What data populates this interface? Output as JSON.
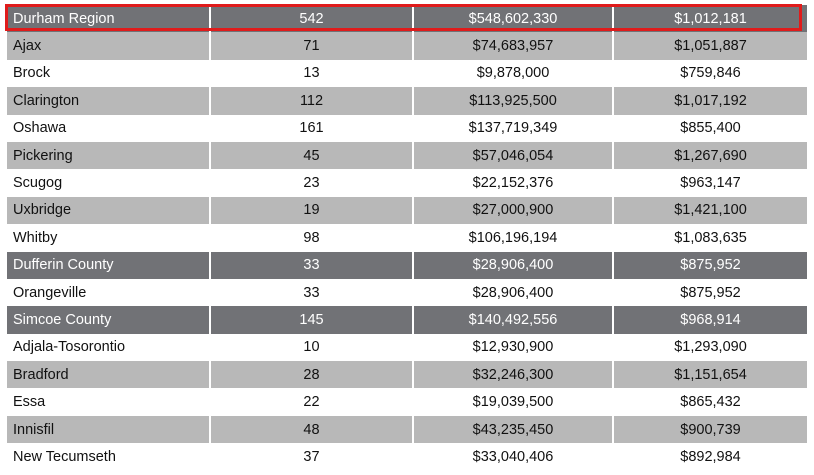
{
  "highlight_color": "#e01b1b",
  "colors": {
    "region_row": "#717276",
    "alt_row": "#b8b8b8",
    "plain_row": "#ffffff"
  },
  "rows": [
    {
      "name": "Durham Region",
      "count": "542",
      "value": "$548,602,330",
      "average": "$1,012,181",
      "style": "region"
    },
    {
      "name": "Ajax",
      "count": "71",
      "value": "$74,683,957",
      "average": "$1,051,887",
      "style": "alt"
    },
    {
      "name": "Brock",
      "count": "13",
      "value": "$9,878,000",
      "average": "$759,846",
      "style": "plain"
    },
    {
      "name": "Clarington",
      "count": "112",
      "value": "$113,925,500",
      "average": "$1,017,192",
      "style": "alt"
    },
    {
      "name": "Oshawa",
      "count": "161",
      "value": "$137,719,349",
      "average": "$855,400",
      "style": "plain"
    },
    {
      "name": "Pickering",
      "count": "45",
      "value": "$57,046,054",
      "average": "$1,267,690",
      "style": "alt"
    },
    {
      "name": "Scugog",
      "count": "23",
      "value": "$22,152,376",
      "average": "$963,147",
      "style": "plain"
    },
    {
      "name": "Uxbridge",
      "count": "19",
      "value": "$27,000,900",
      "average": "$1,421,100",
      "style": "alt"
    },
    {
      "name": "Whitby",
      "count": "98",
      "value": "$106,196,194",
      "average": "$1,083,635",
      "style": "plain"
    },
    {
      "name": "Dufferin County",
      "count": "33",
      "value": "$28,906,400",
      "average": "$875,952",
      "style": "region"
    },
    {
      "name": "Orangeville",
      "count": "33",
      "value": "$28,906,400",
      "average": "$875,952",
      "style": "plain"
    },
    {
      "name": "Simcoe County",
      "count": "145",
      "value": "$140,492,556",
      "average": "$968,914",
      "style": "region"
    },
    {
      "name": "Adjala-Tosorontio",
      "count": "10",
      "value": "$12,930,900",
      "average": "$1,293,090",
      "style": "plain"
    },
    {
      "name": "Bradford",
      "count": "28",
      "value": "$32,246,300",
      "average": "$1,151,654",
      "style": "alt"
    },
    {
      "name": "Essa",
      "count": "22",
      "value": "$19,039,500",
      "average": "$865,432",
      "style": "plain"
    },
    {
      "name": "Innisfil",
      "count": "48",
      "value": "$43,235,450",
      "average": "$900,739",
      "style": "alt"
    },
    {
      "name": "New Tecumseth",
      "count": "37",
      "value": "$33,040,406",
      "average": "$892,984",
      "style": "plain"
    }
  ]
}
